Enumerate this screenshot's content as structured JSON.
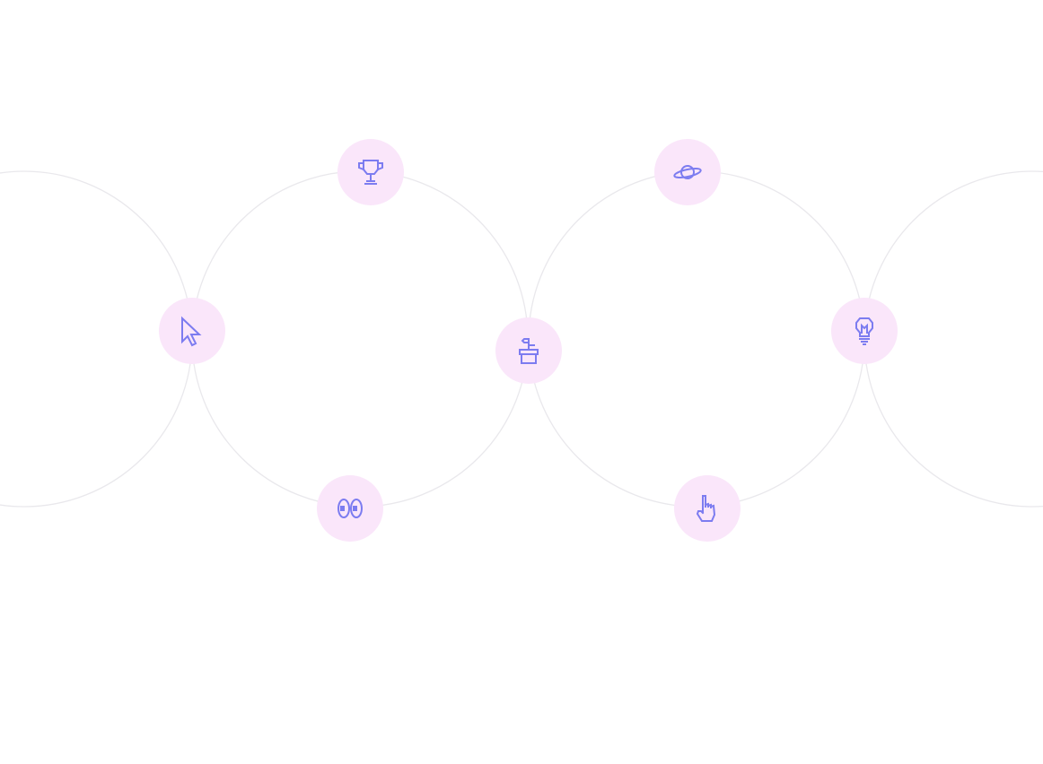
{
  "colors": {
    "background": "#ffffff",
    "ring_stroke": "#e9e8ec",
    "badge_fill": "#fae6fa",
    "icon_stroke": "#7c7cf0"
  },
  "icons": [
    "cursor-arrow-icon",
    "trophy-icon",
    "eyes-icon",
    "plant-pot-icon",
    "planet-icon",
    "pointing-hand-icon",
    "lightbulb-icon"
  ]
}
